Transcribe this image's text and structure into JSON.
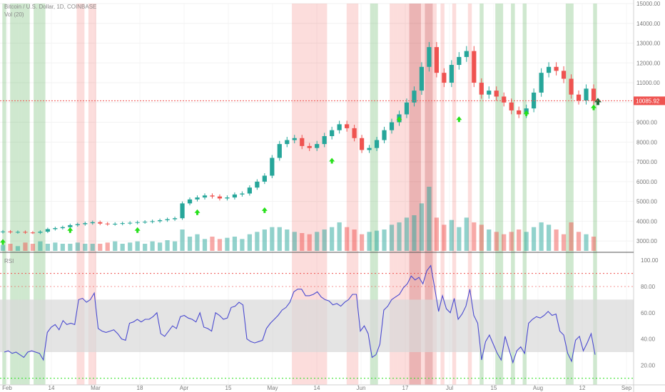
{
  "header": {
    "symbol_line": "Bitcoin / U.S. Dollar, 1D, COINBASE",
    "volume_line": "Vol (20)",
    "rsi_line": "RSI"
  },
  "colors": {
    "up": "#26a69a",
    "down": "#ef5350",
    "rsi_line": "#4a4ad0",
    "band": "#d9d9d9",
    "signal_arrow": "#26e01a",
    "current_arrow": "#1e6b3c",
    "green_zone": "#5fb35f",
    "red_zone": "#ef5350",
    "dark_red_zone": "#c62828"
  },
  "chart_data": [
    {
      "type": "candlestick",
      "title": "Bitcoin / U.S. Dollar, 1D, COINBASE",
      "x_ticks": [
        "Feb",
        "14",
        "Mar",
        "18",
        "Apr",
        "15",
        "May",
        "14",
        "Jun",
        "17",
        "Jul",
        "15",
        "Aug",
        "12",
        "Sep"
      ],
      "y_ticks": [
        "3000.00",
        "4000.00",
        "5000.00",
        "6000.00",
        "7000.00",
        "8000.00",
        "9000.00",
        "10000.00",
        "11000.00",
        "12000.00",
        "13000.00",
        "14000.00",
        "15000.00"
      ],
      "ylim": [
        2500,
        15000
      ],
      "current_price": "10085.92",
      "close_series_approx": [
        3480,
        3440,
        3460,
        3430,
        3420,
        3470,
        3600,
        3650,
        3700,
        3800,
        3850,
        3900,
        3950,
        3880,
        3850,
        3870,
        3900,
        3920,
        3950,
        3970,
        4000,
        4050,
        4100,
        4150,
        4900,
        5100,
        5200,
        5300,
        5250,
        5150,
        5200,
        5350,
        5400,
        5700,
        6000,
        6300,
        7200,
        7900,
        8100,
        8200,
        7800,
        7700,
        7900,
        8300,
        8600,
        8900,
        8700,
        8200,
        7600,
        7700,
        8100,
        8600,
        9000,
        9400,
        10000,
        10600,
        11800,
        12800,
        11500,
        11000,
        11900,
        12300,
        12600,
        11000,
        10400,
        10600,
        10300,
        10000,
        9600,
        9400,
        9700,
        10500,
        11500,
        11800,
        11600,
        11200,
        10400,
        10100,
        10700,
        10085
      ],
      "signal_arrows_price": [
        3100,
        3700,
        3700,
        4600,
        4700,
        7200,
        9300,
        9300,
        9600,
        9900
      ]
    },
    {
      "type": "bar",
      "title": "Vol (20)",
      "values_relative_approx": [
        0.25,
        0.3,
        0.2,
        0.35,
        0.3,
        0.4,
        0.3,
        0.35,
        0.3,
        0.3,
        0.35,
        0.3,
        0.3,
        0.3,
        0.35,
        0.4,
        0.3,
        0.35,
        0.4,
        0.3,
        0.4,
        0.35,
        0.45,
        0.4,
        0.9,
        0.6,
        0.7,
        0.5,
        0.6,
        0.5,
        0.55,
        0.6,
        0.5,
        0.7,
        0.8,
        0.9,
        1.0,
        1.0,
        0.9,
        0.8,
        0.75,
        0.7,
        0.8,
        0.9,
        1.0,
        1.2,
        1.0,
        0.9,
        0.7,
        0.8,
        0.85,
        0.9,
        1.1,
        1.2,
        1.4,
        1.5,
        2.0,
        2.7,
        1.4,
        1.1,
        1.3,
        1.0,
        1.4,
        1.2,
        1.1,
        0.9,
        0.8,
        0.7,
        0.8,
        0.9,
        0.8,
        1.0,
        1.2,
        1.1,
        0.9,
        0.7,
        1.2,
        0.8,
        0.7,
        0.6
      ]
    },
    {
      "type": "line",
      "title": "RSI",
      "y_ticks": [
        "20.00",
        "40.00",
        "60.00",
        "80.00",
        "100.00"
      ],
      "ylim": [
        5,
        105
      ],
      "band": [
        30,
        70
      ],
      "levels": [
        90,
        10
      ],
      "values": [
        30,
        31,
        29,
        30,
        28,
        26,
        30,
        31,
        30,
        29,
        24,
        45,
        49,
        51,
        47,
        54,
        51,
        52,
        51,
        70,
        71,
        68,
        70,
        75,
        48,
        46,
        45,
        46,
        47,
        44,
        40,
        39,
        52,
        53,
        55,
        53,
        55,
        55,
        57,
        60,
        44,
        42,
        46,
        50,
        48,
        57,
        58,
        56,
        55,
        53,
        60,
        49,
        48,
        46,
        60,
        58,
        55,
        56,
        64,
        65,
        68,
        66,
        40,
        38,
        37,
        38,
        39,
        48,
        52,
        55,
        58,
        62,
        64,
        68,
        76,
        78,
        78,
        73,
        73,
        74,
        76,
        72,
        70,
        69,
        66,
        67,
        65,
        68,
        70,
        74,
        74,
        46,
        50,
        44,
        26,
        28,
        36,
        62,
        65,
        70,
        72,
        74,
        79,
        82,
        88,
        85,
        87,
        82,
        92,
        96,
        79,
        61,
        73,
        63,
        60,
        71,
        55,
        59,
        65,
        78,
        58,
        52,
        24,
        38,
        43,
        36,
        29,
        24,
        42,
        32,
        22,
        31,
        34,
        29,
        52,
        55,
        57,
        56,
        58,
        61,
        58,
        59,
        46,
        43,
        29,
        23,
        39,
        42,
        31,
        37,
        44,
        28
      ]
    }
  ]
}
